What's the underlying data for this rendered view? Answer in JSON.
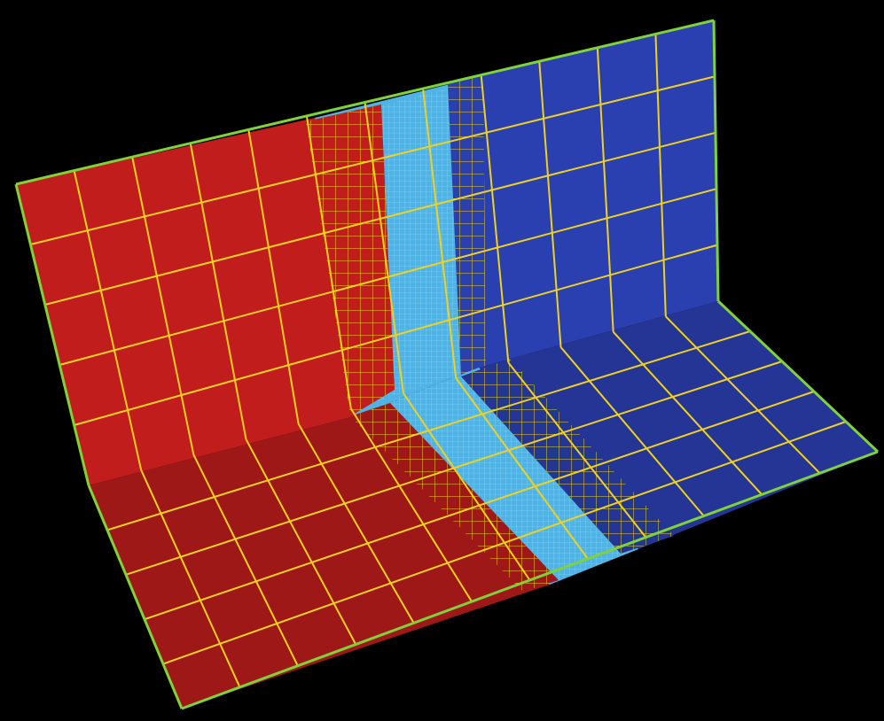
{
  "image": {
    "kind": "adaptive-mesh-refinement-visualization",
    "text": ""
  },
  "colors": {
    "background": "#000000",
    "left_face": "#c21d1d",
    "left_face_shadow": "#9e1818",
    "right_face": "#2a3fb0",
    "right_face_shadow": "#243596",
    "interface": "#4fb3e6",
    "coarse_grid_lines": "#7fd23a",
    "fine_grid_lines": "#f0d21e",
    "finest_grid_lines": "#7ad7ff"
  },
  "mesh": {
    "coarse_cells_wall": 12,
    "coarse_cells_floor": 5,
    "refinement_levels": 3
  }
}
